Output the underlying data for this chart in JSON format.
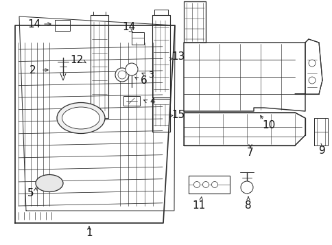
{
  "bg_color": "#ffffff",
  "line_color": "#2a2a2a",
  "label_color": "#111111",
  "fig_width": 4.85,
  "fig_height": 3.57,
  "dpi": 100
}
